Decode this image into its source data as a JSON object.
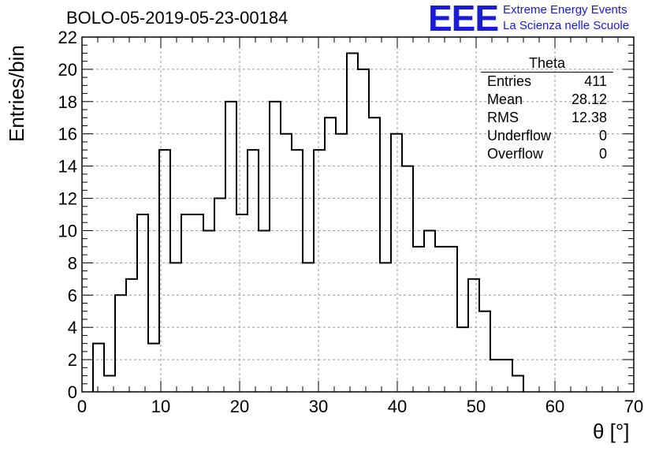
{
  "header": {
    "run_title": "BOLO-05-2019-05-23-00184",
    "logo": "EEE",
    "brand_line1": "Extreme Energy Events",
    "brand_line2": "La Scienza nelle Scuole",
    "brand_color": "#1a1adb"
  },
  "stats_box": {
    "title": "Theta",
    "rows": [
      {
        "label": "Entries",
        "value": "411"
      },
      {
        "label": "Mean",
        "value": "28.12"
      },
      {
        "label": "RMS",
        "value": "12.38"
      },
      {
        "label": "Underflow",
        "value": "0"
      },
      {
        "label": "Overflow",
        "value": "0"
      }
    ]
  },
  "chart_data": {
    "type": "histogram",
    "title": "BOLO-05-2019-05-23-00184",
    "xlabel": "θ [°]",
    "ylabel": "Entries/bin",
    "xlim": [
      0,
      70
    ],
    "ylim": [
      0,
      22
    ],
    "xticks": [
      0,
      10,
      20,
      30,
      40,
      50,
      60,
      70
    ],
    "yticks": [
      0,
      2,
      4,
      6,
      8,
      10,
      12,
      14,
      16,
      18,
      20,
      22
    ],
    "grid": true,
    "bin_edges": [
      0,
      1.4,
      2.8,
      4.2,
      5.6,
      7.0,
      8.4,
      9.8,
      11.2,
      12.6,
      14.0,
      15.4,
      16.8,
      18.2,
      19.6,
      21.0,
      22.4,
      23.8,
      25.2,
      26.6,
      28.0,
      29.4,
      30.8,
      32.2,
      33.6,
      35.0,
      36.4,
      37.8,
      39.2,
      40.6,
      42.0,
      43.4,
      44.8,
      46.2,
      47.6,
      49.0,
      50.4,
      51.8,
      53.2,
      54.6,
      56.0,
      57.4,
      58.8,
      60.2,
      61.6,
      63.0,
      64.4,
      65.8,
      67.2,
      68.6,
      70.0
    ],
    "counts": [
      0,
      3,
      1,
      6,
      7,
      11,
      3,
      15,
      8,
      11,
      11,
      10,
      12,
      18,
      11,
      15,
      10,
      18,
      16,
      15,
      8,
      15,
      17,
      16,
      21,
      20,
      17,
      8,
      16,
      14,
      9,
      10,
      9,
      9,
      4,
      7,
      5,
      2,
      2,
      1,
      0,
      0,
      0,
      0,
      0,
      0,
      0,
      0,
      0,
      0
    ]
  }
}
